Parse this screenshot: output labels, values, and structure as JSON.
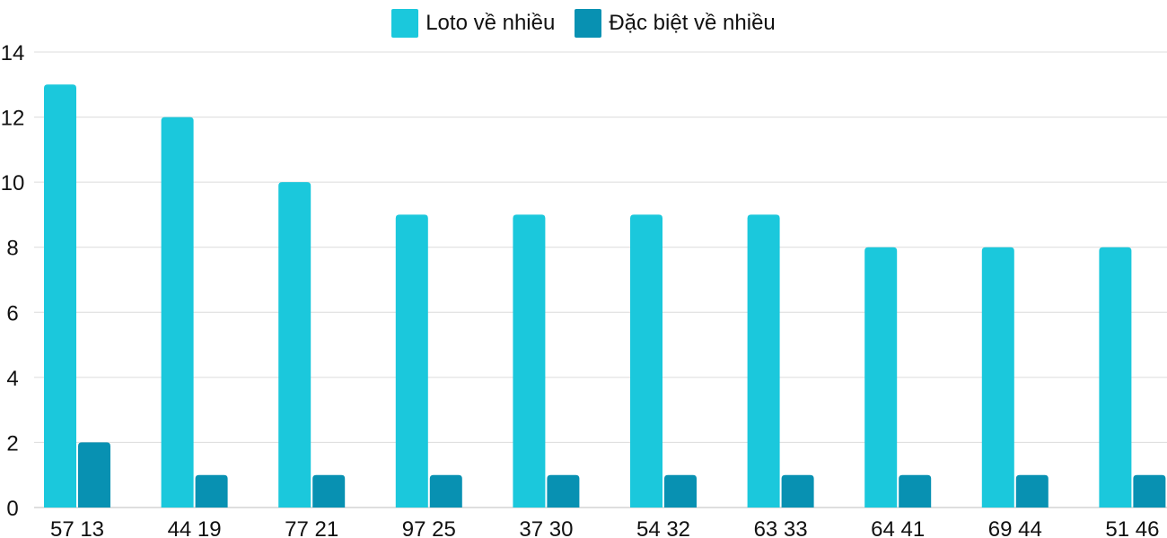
{
  "chart_data": {
    "type": "bar",
    "title": "",
    "xlabel": "",
    "ylabel": "",
    "categories": [
      "57 13",
      "44 19",
      "77 21",
      "97 25",
      "37 30",
      "54 32",
      "63 33",
      "64 41",
      "69 44",
      "51 46"
    ],
    "series": [
      {
        "name": "Loto về nhiều",
        "color": "#1BC8DC",
        "values": [
          13,
          12,
          10,
          9,
          9,
          9,
          9,
          8,
          8,
          8
        ]
      },
      {
        "name": "Đặc biệt về nhiều",
        "color": "#0891B2",
        "values": [
          2,
          1,
          1,
          1,
          1,
          1,
          1,
          1,
          1,
          1
        ]
      }
    ],
    "ylim": [
      0,
      14
    ],
    "yticks": [
      0,
      2,
      4,
      6,
      8,
      10,
      12,
      14
    ],
    "grid": true,
    "legend_position": "top-center"
  }
}
